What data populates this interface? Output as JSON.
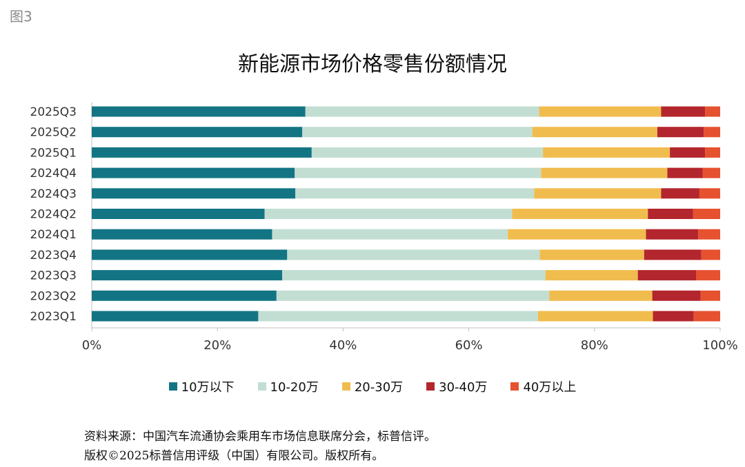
{
  "figure_label": "图3",
  "chart_data": {
    "type": "bar",
    "orientation": "horizontal",
    "stacked": true,
    "title": "新能源市场价格零售份额情况",
    "categories": [
      "2025Q3",
      "2025Q2",
      "2025Q1",
      "2024Q4",
      "2024Q3",
      "2024Q2",
      "2024Q1",
      "2023Q4",
      "2023Q3",
      "2023Q2",
      "2023Q1"
    ],
    "xlim": [
      0,
      100
    ],
    "x_ticks": [
      "0%",
      "20%",
      "40%",
      "60%",
      "80%",
      "100%"
    ],
    "legend_position": "bottom",
    "grid": false,
    "series": [
      {
        "name": "10万以下",
        "color": "#137584",
        "values": [
          34.0,
          33.5,
          35.0,
          32.3,
          32.4,
          27.5,
          28.7,
          31.1,
          30.3,
          29.4,
          26.5
        ]
      },
      {
        "name": "10-20万",
        "color": "#c2ded3",
        "values": [
          37.2,
          36.6,
          36.8,
          39.2,
          38.0,
          39.4,
          37.5,
          40.2,
          41.9,
          43.4,
          44.5
        ]
      },
      {
        "name": "20-30万",
        "color": "#f1bc4e",
        "values": [
          19.4,
          19.9,
          20.2,
          20.1,
          20.2,
          21.6,
          22.0,
          16.6,
          14.7,
          16.4,
          18.3
        ]
      },
      {
        "name": "30-40万",
        "color": "#b3262d",
        "values": [
          7.0,
          7.4,
          5.6,
          5.6,
          6.1,
          7.2,
          8.3,
          9.1,
          9.3,
          7.7,
          6.5
        ]
      },
      {
        "name": "40万以上",
        "color": "#e6512f",
        "values": [
          2.4,
          2.6,
          2.4,
          2.8,
          3.3,
          4.3,
          3.5,
          3.0,
          3.8,
          3.1,
          4.2
        ]
      }
    ]
  },
  "source_lines": [
    "资料来源：中国汽车流通协会乘用车市场信息联席分会，标普信评。",
    "版权©2025标普信用评级（中国）有限公司。版权所有。"
  ]
}
